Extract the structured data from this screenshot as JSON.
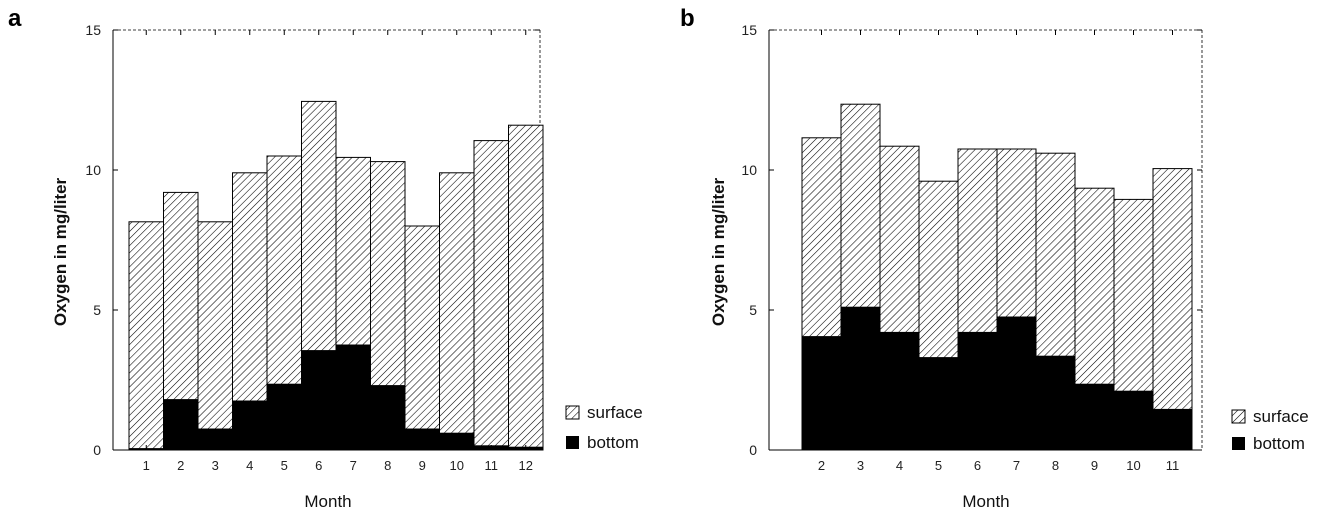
{
  "colors": {
    "bottom": "#000000",
    "hatch": "#000000",
    "background": "#ffffff"
  },
  "chart_data": [
    {
      "type": "bar",
      "stacked": true,
      "panel_label": "a",
      "xlabel": "Month",
      "ylabel": "Oxygen in mg/liter",
      "ylim": [
        0,
        15
      ],
      "yticks": [
        0,
        5,
        10,
        15
      ],
      "categories": [
        "1",
        "2",
        "3",
        "4",
        "5",
        "6",
        "7",
        "8",
        "9",
        "10",
        "11",
        "12"
      ],
      "series": [
        {
          "name": "surface",
          "pattern": "hatch",
          "values": [
            8.15,
            9.2,
            8.15,
            9.9,
            10.5,
            12.45,
            10.45,
            10.3,
            8.0,
            9.9,
            11.05,
            11.6
          ]
        },
        {
          "name": "bottom",
          "pattern": "solid",
          "values": [
            0.05,
            1.8,
            0.75,
            1.75,
            2.35,
            3.55,
            3.75,
            2.3,
            0.75,
            0.6,
            0.15,
            0.1
          ]
        }
      ],
      "legend": {
        "placement": "right-bottom",
        "entries": [
          "surface",
          "bottom"
        ]
      }
    },
    {
      "type": "bar",
      "stacked": true,
      "panel_label": "b",
      "xlabel": "Month",
      "ylabel": "Oxygen in mg/liter",
      "ylim": [
        0,
        15
      ],
      "yticks": [
        0,
        5,
        10,
        15
      ],
      "categories": [
        "2",
        "3",
        "4",
        "5",
        "6",
        "7",
        "8",
        "9",
        "10",
        "11"
      ],
      "series": [
        {
          "name": "surface",
          "pattern": "hatch",
          "values": [
            11.15,
            12.35,
            10.85,
            9.6,
            10.75,
            10.75,
            10.6,
            9.35,
            8.95,
            10.05
          ]
        },
        {
          "name": "bottom",
          "pattern": "solid",
          "values": [
            4.05,
            5.1,
            4.2,
            3.3,
            4.2,
            4.75,
            3.35,
            2.35,
            2.1,
            1.45
          ]
        }
      ],
      "legend": {
        "placement": "right-bottom",
        "entries": [
          "surface",
          "bottom"
        ]
      }
    }
  ]
}
